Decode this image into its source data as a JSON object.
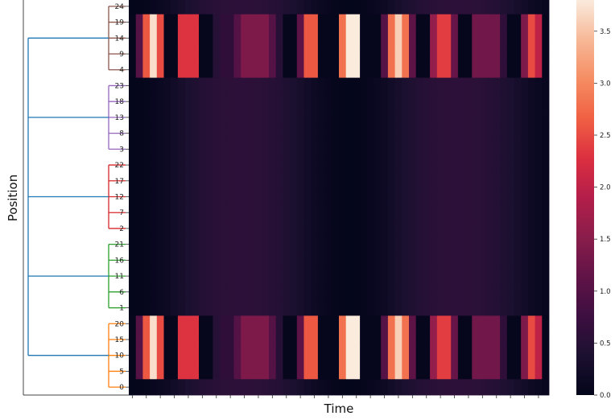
{
  "chart_data": {
    "type": "heatmap",
    "xlabel": "Time",
    "ylabel": "Position",
    "row_labels": [
      "24",
      "19",
      "14",
      "9",
      "4",
      "23",
      "18",
      "13",
      "8",
      "3",
      "22",
      "17",
      "12",
      "7",
      "2",
      "21",
      "16",
      "11",
      "6",
      "1",
      "20",
      "15",
      "10",
      "5",
      "0"
    ],
    "n_columns": 60,
    "x_tick_labels_shown": false,
    "colormap": "rocket",
    "colorbar": {
      "min": 0.0,
      "max": 3.8,
      "ticks": [
        0.0,
        0.5,
        1.0,
        1.5,
        2.0,
        2.5,
        3.0,
        3.5
      ],
      "tick_labels": [
        "0.0",
        "0.5",
        "1.0",
        "1.5",
        "2.0",
        "2.5",
        "3.0",
        "3.5"
      ]
    },
    "row_groups": {
      "active": [
        "19",
        "14",
        "9",
        "4",
        "20",
        "15",
        "10",
        "5"
      ],
      "background": [
        "24",
        "23",
        "18",
        "13",
        "8",
        "3",
        "22",
        "17",
        "12",
        "7",
        "2",
        "21",
        "16",
        "11",
        "6",
        "1",
        "0"
      ]
    },
    "active_row_column_values": [
      0.05,
      1.0,
      2.6,
      3.7,
      2.5,
      0.05,
      0.05,
      2.3,
      2.3,
      2.3,
      0.05,
      0.05,
      0.5,
      0.6,
      0.6,
      1.0,
      1.4,
      1.4,
      1.4,
      1.4,
      1.0,
      0.5,
      0.05,
      0.05,
      1.1,
      2.6,
      2.6,
      0.05,
      0.05,
      0.05,
      2.8,
      3.8,
      3.8,
      0.05,
      0.05,
      0.05,
      1.0,
      2.8,
      3.6,
      2.8,
      1.1,
      0.05,
      0.05,
      1.6,
      2.4,
      2.4,
      1.2,
      0.05,
      0.05,
      1.3,
      1.3,
      1.3,
      1.3,
      0.6,
      0.05,
      0.05,
      1.4,
      2.5,
      2.0,
      0.05
    ],
    "background_row_column_values": [
      0.02,
      0.03,
      0.05,
      0.08,
      0.12,
      0.18,
      0.25,
      0.31,
      0.37,
      0.42,
      0.46,
      0.5,
      0.53,
      0.55,
      0.56,
      0.57,
      0.57,
      0.56,
      0.55,
      0.53,
      0.5,
      0.46,
      0.42,
      0.37,
      0.31,
      0.25,
      0.18,
      0.12,
      0.08,
      0.05,
      0.03,
      0.02,
      0.03,
      0.05,
      0.08,
      0.12,
      0.18,
      0.25,
      0.31,
      0.37,
      0.42,
      0.46,
      0.5,
      0.53,
      0.55,
      0.56,
      0.57,
      0.57,
      0.56,
      0.55,
      0.53,
      0.5,
      0.46,
      0.42,
      0.37,
      0.31,
      0.25,
      0.18,
      0.12,
      0.08
    ],
    "dendrogram": {
      "cluster_colors": [
        "#8c564b",
        "#9467bd",
        "#d62728",
        "#2ca02c",
        "#ff7f0e"
      ],
      "root_color": "#1f77b4",
      "clusters": [
        [
          "24",
          "19",
          "14",
          "9",
          "4"
        ],
        [
          "23",
          "18",
          "13",
          "8",
          "3"
        ],
        [
          "22",
          "17",
          "12",
          "7",
          "2"
        ],
        [
          "21",
          "16",
          "11",
          "6",
          "1"
        ],
        [
          "20",
          "15",
          "10",
          "5",
          "0"
        ]
      ]
    }
  }
}
